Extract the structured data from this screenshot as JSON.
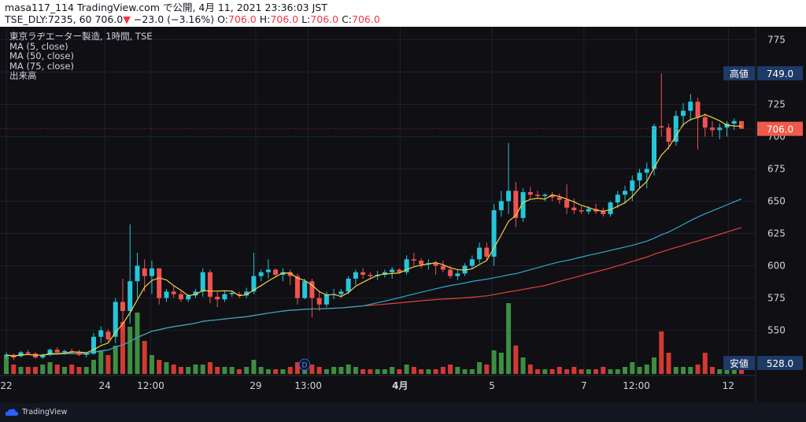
{
  "header": {
    "line1_prefix": "masa117_114 TradingView.com で公開, 4月 11, 2021 23:36:03 JST",
    "symbol": "TSE_DLY:7235, 60 706.0",
    "arrow": "▼",
    "change": "−23.0 (−3.16%)",
    "o_label": "O:",
    "o_value": "706.0",
    "h_label": "H:",
    "h_value": "706.0",
    "l_label": "L:",
    "l_value": "706.0",
    "c_label": "C:",
    "c_value": "706.0"
  },
  "legend": {
    "title": "東京ラヂエーター製造, 1時間, TSE",
    "ma5": "MA (5, close)",
    "ma50": "MA (50, close)",
    "ma75": "MA (75, close)",
    "volume": "出来高"
  },
  "footer": {
    "brand": "TradingView"
  },
  "colors": {
    "up": "#26a69a",
    "up_fill": "#26c6da",
    "down": "#ef5350",
    "ma5": "#f5d142",
    "ma50": "#2fa8c8",
    "ma75": "#e0443a",
    "vol_up": "#3e8e41",
    "vol_down": "#d03a32",
    "price_line": "#8b2b2b",
    "label_blue": "#1e3a66",
    "label_red": "#f05a4a"
  },
  "chart_data": {
    "type": "candlestick",
    "title": "東京ラヂエーター製造, 1時間, TSE",
    "y_range": [
      515,
      785
    ],
    "y_ticks": [
      "775",
      "750",
      "725",
      "700",
      "675",
      "650",
      "625",
      "600",
      "575",
      "550"
    ],
    "x_ticks": [
      "22",
      "24",
      "12:00",
      "29",
      "13:00",
      "4月",
      "5",
      "7",
      "12:00",
      "12"
    ],
    "last_price": "706.0",
    "high_label": "高値",
    "high_value": "749.0",
    "low_label": "安値",
    "low_value": "528.0",
    "dividend_marker": "D",
    "candles": [
      [
        530,
        533,
        528,
        531
      ],
      [
        531,
        532,
        527,
        529
      ],
      [
        530,
        534,
        529,
        533
      ],
      [
        533,
        535,
        531,
        532
      ],
      [
        532,
        533,
        528,
        529
      ],
      [
        529,
        532,
        528,
        531
      ],
      [
        531,
        536,
        530,
        535
      ],
      [
        535,
        537,
        532,
        533
      ],
      [
        533,
        535,
        531,
        534
      ],
      [
        534,
        536,
        532,
        533
      ],
      [
        533,
        535,
        530,
        531
      ],
      [
        531,
        533,
        529,
        532
      ],
      [
        532,
        548,
        531,
        545
      ],
      [
        545,
        553,
        540,
        550
      ],
      [
        549,
        551,
        541,
        543
      ],
      [
        545,
        575,
        540,
        572
      ],
      [
        572,
        590,
        550,
        565
      ],
      [
        565,
        632,
        555,
        588
      ],
      [
        588,
        610,
        575,
        600
      ],
      [
        598,
        605,
        580,
        592
      ],
      [
        592,
        604,
        578,
        598
      ],
      [
        598,
        598,
        570,
        575
      ],
      [
        575,
        582,
        572,
        580
      ],
      [
        580,
        585,
        575,
        578
      ],
      [
        578,
        580,
        572,
        574
      ],
      [
        574,
        578,
        572,
        577
      ],
      [
        577,
        582,
        575,
        580
      ],
      [
        580,
        598,
        576,
        595
      ],
      [
        595,
        597,
        571,
        576
      ],
      [
        576,
        580,
        568,
        574
      ],
      [
        574,
        580,
        572,
        578
      ],
      [
        578,
        581,
        576,
        579
      ],
      [
        578,
        580,
        575,
        577
      ],
      [
        577,
        583,
        575,
        580
      ],
      [
        580,
        610,
        578,
        592
      ],
      [
        592,
        597,
        588,
        595
      ],
      [
        595,
        605,
        590,
        597
      ],
      [
        597,
        598,
        591,
        593
      ],
      [
        593,
        598,
        588,
        595
      ],
      [
        595,
        597,
        585,
        592
      ],
      [
        592,
        594,
        570,
        575
      ],
      [
        575,
        590,
        574,
        588
      ],
      [
        588,
        590,
        560,
        575
      ],
      [
        575,
        580,
        565,
        570
      ],
      [
        570,
        580,
        568,
        578
      ],
      [
        578,
        582,
        574,
        578
      ],
      [
        578,
        582,
        575,
        580
      ],
      [
        580,
        592,
        578,
        590
      ],
      [
        590,
        597,
        585,
        595
      ],
      [
        595,
        598,
        590,
        593
      ],
      [
        593,
        595,
        590,
        592
      ],
      [
        592,
        596,
        589,
        593
      ],
      [
        593,
        597,
        591,
        595
      ],
      [
        595,
        599,
        590,
        597
      ],
      [
        597,
        598,
        594,
        595
      ],
      [
        595,
        608,
        593,
        605
      ],
      [
        605,
        610,
        600,
        604
      ],
      [
        604,
        606,
        598,
        601
      ],
      [
        601,
        605,
        597,
        602
      ],
      [
        602,
        604,
        593,
        600
      ],
      [
        600,
        604,
        595,
        597
      ],
      [
        597,
        600,
        590,
        592
      ],
      [
        592,
        597,
        589,
        594
      ],
      [
        594,
        602,
        592,
        600
      ],
      [
        600,
        608,
        598,
        605
      ],
      [
        605,
        618,
        602,
        614
      ],
      [
        614,
        618,
        604,
        607
      ],
      [
        607,
        648,
        600,
        643
      ],
      [
        643,
        658,
        638,
        650
      ],
      [
        650,
        695,
        640,
        658
      ],
      [
        658,
        665,
        630,
        637
      ],
      [
        637,
        660,
        634,
        657
      ],
      [
        657,
        661,
        652,
        655
      ],
      [
        655,
        658,
        652,
        654
      ],
      [
        654,
        656,
        650,
        655
      ],
      [
        655,
        657,
        650,
        653
      ],
      [
        653,
        656,
        648,
        651
      ],
      [
        651,
        663,
        640,
        645
      ],
      [
        645,
        652,
        640,
        643
      ],
      [
        643,
        646,
        640,
        642
      ],
      [
        642,
        646,
        640,
        644
      ],
      [
        644,
        648,
        640,
        642
      ],
      [
        642,
        645,
        638,
        640
      ],
      [
        640,
        650,
        638,
        649
      ],
      [
        649,
        658,
        645,
        655
      ],
      [
        655,
        662,
        648,
        658
      ],
      [
        658,
        670,
        650,
        666
      ],
      [
        666,
        675,
        660,
        672
      ],
      [
        672,
        680,
        660,
        675
      ],
      [
        675,
        710,
        670,
        708
      ],
      [
        708,
        749,
        700,
        707
      ],
      [
        707,
        710,
        690,
        696
      ],
      [
        696,
        720,
        693,
        716
      ],
      [
        716,
        726,
        708,
        720
      ],
      [
        720,
        733,
        712,
        727
      ],
      [
        727,
        730,
        690,
        715
      ],
      [
        715,
        718,
        700,
        707
      ],
      [
        707,
        712,
        700,
        705
      ],
      [
        705,
        710,
        698,
        707
      ],
      [
        707,
        712,
        700,
        710
      ],
      [
        710,
        714,
        705,
        712
      ],
      [
        712,
        712,
        706,
        706
      ]
    ],
    "volume": [
      8,
      4,
      3,
      3,
      3,
      4,
      5,
      4,
      3,
      4,
      3,
      3,
      6,
      10,
      8,
      12,
      22,
      20,
      26,
      14,
      8,
      6,
      5,
      4,
      3,
      3,
      4,
      4,
      5,
      3,
      3,
      3,
      2,
      3,
      6,
      3,
      2,
      2,
      2,
      3,
      5,
      4,
      4,
      3,
      2,
      3,
      3,
      4,
      3,
      2,
      2,
      2,
      2,
      3,
      2,
      4,
      3,
      2,
      2,
      2,
      3,
      4,
      3,
      2,
      2,
      5,
      4,
      10,
      9,
      30,
      12,
      7,
      4,
      2,
      2,
      2,
      3,
      2,
      3,
      2,
      2,
      2,
      3,
      2,
      2,
      3,
      5,
      3,
      4,
      7,
      18,
      9,
      3,
      3,
      3,
      4,
      9,
      3,
      2,
      3,
      2,
      2
    ]
  }
}
